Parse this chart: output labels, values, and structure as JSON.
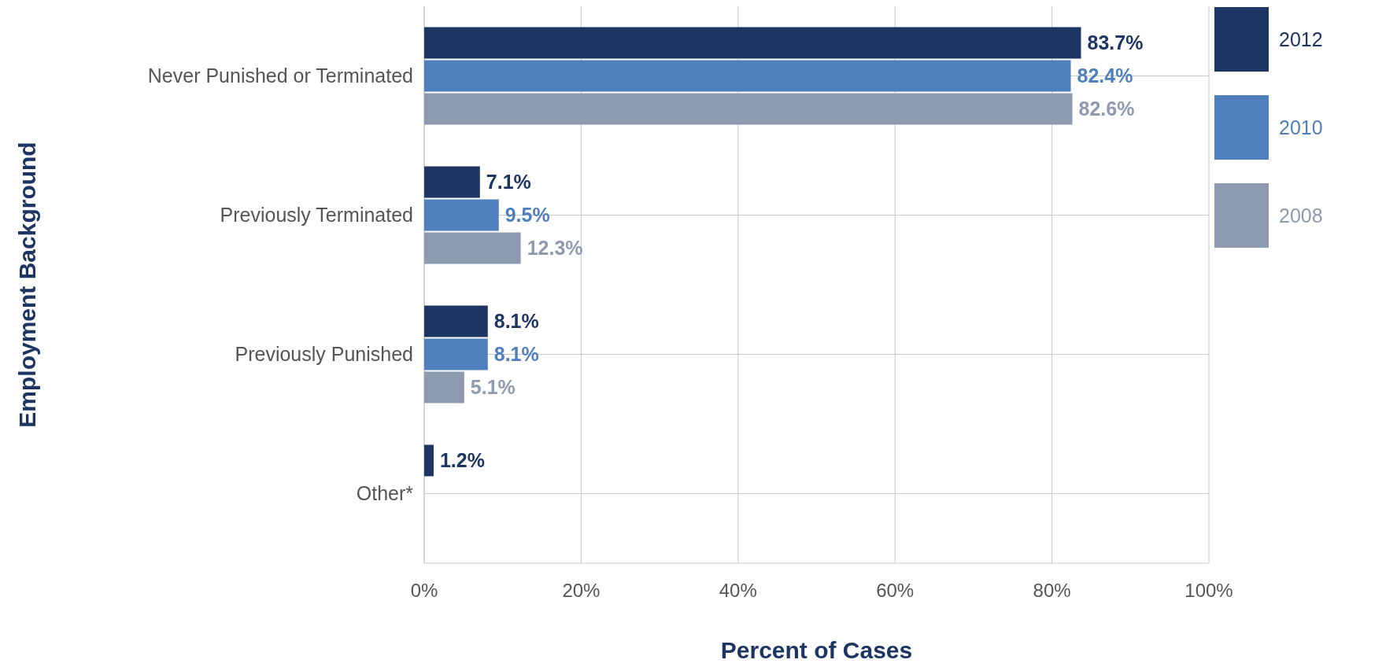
{
  "chart_data": {
    "type": "bar",
    "orientation": "horizontal",
    "xlabel": "Percent of Cases",
    "ylabel": "Employment Background",
    "categories": [
      "Never Punished or Terminated",
      "Previously Terminated",
      "Previously Punished",
      "Other*"
    ],
    "series": [
      {
        "name": "2012",
        "color": "#1c3562",
        "values": [
          83.7,
          7.1,
          8.1,
          1.2
        ],
        "value_labels": [
          "83.7%",
          "7.1%",
          "8.1%",
          "1.2%"
        ]
      },
      {
        "name": "2010",
        "color": "#4f80bd",
        "values": [
          82.4,
          9.5,
          8.1,
          null
        ],
        "value_labels": [
          "82.4%",
          "9.5%",
          "8.1%",
          null
        ]
      },
      {
        "name": "2008",
        "color": "#8d9ab0",
        "values": [
          82.6,
          12.3,
          5.1,
          null
        ],
        "value_labels": [
          "82.6%",
          "12.3%",
          "5.1%",
          null
        ]
      }
    ],
    "xlim": [
      0,
      100
    ],
    "xticks": [
      {
        "value": 0,
        "label": "0%"
      },
      {
        "value": 20,
        "label": "20%"
      },
      {
        "value": 40,
        "label": "40%"
      },
      {
        "value": 60,
        "label": "60%"
      },
      {
        "value": 80,
        "label": "80%"
      },
      {
        "value": 100,
        "label": "100%"
      }
    ],
    "grid": true,
    "legend": "top right"
  }
}
